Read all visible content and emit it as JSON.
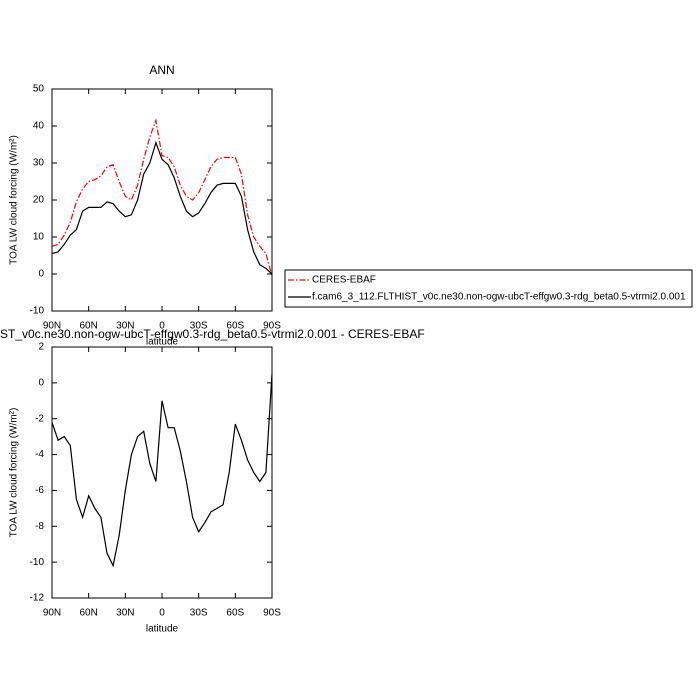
{
  "chart_data": [
    {
      "type": "line",
      "title": "ANN",
      "xlabel": "latitude",
      "ylabel": "TOA LW cloud forcing (W/m²)",
      "x": [
        90,
        85,
        80,
        75,
        70,
        65,
        60,
        55,
        50,
        45,
        40,
        35,
        30,
        25,
        20,
        15,
        10,
        5,
        0,
        -5,
        -10,
        -15,
        -20,
        -25,
        -30,
        -35,
        -40,
        -45,
        -50,
        -55,
        -60,
        -65,
        -70,
        -75,
        -80,
        -85,
        -90
      ],
      "series": [
        {
          "name": "CERES-EBAF",
          "color": "#ff0000",
          "dashed": true,
          "values": [
            7.5,
            8,
            10.5,
            14,
            19.5,
            23,
            25,
            25.5,
            26.5,
            29,
            29.5,
            25,
            21,
            20,
            24,
            31,
            37,
            41.5,
            32,
            31.5,
            29,
            24,
            21,
            20,
            22,
            25.5,
            29,
            31,
            31.5,
            31.5,
            31.5,
            27,
            16,
            10,
            7.5,
            5.5,
            -0.5
          ]
        },
        {
          "name": "f.cam6_3_112.FLTHIST_v0c.ne30.non-ogw-ubcT-effgw0.3-rdg_beta0.5-vtrmi2.0.001",
          "color": "#000000",
          "dashed": false,
          "values": [
            5.5,
            6,
            8,
            10.5,
            12,
            17,
            18,
            18,
            18,
            19.5,
            19,
            17,
            15.5,
            16,
            20,
            27,
            30,
            35.5,
            31,
            29.5,
            26,
            21,
            17,
            15.5,
            16.5,
            19,
            22,
            24,
            24.5,
            24.5,
            24.5,
            21,
            12,
            6,
            2.5,
            1.5,
            0
          ]
        }
      ],
      "xlim": [
        90,
        -90
      ],
      "xticks": [
        {
          "value": 90,
          "label": "90N"
        },
        {
          "value": 60,
          "label": "60N"
        },
        {
          "value": 30,
          "label": "30N"
        },
        0,
        {
          "value": -30,
          "label": "30S"
        },
        {
          "value": -60,
          "label": "60S"
        },
        {
          "value": -90,
          "label": "90S"
        }
      ],
      "ylim": [
        -10,
        50
      ],
      "yticks": [
        -10,
        0,
        10,
        20,
        30,
        40,
        50
      ]
    },
    {
      "type": "line",
      "title": "ST_v0c.ne30.non-ogw-ubcT-effgw0.3-rdg_beta0.5-vtrmi2.0.001 - CERES-EBAF",
      "xlabel": "latitude",
      "ylabel": "TOA LW cloud forcing (W/m²)",
      "x": [
        90,
        85,
        80,
        75,
        70,
        65,
        60,
        55,
        50,
        45,
        40,
        35,
        30,
        25,
        20,
        15,
        10,
        5,
        0,
        -5,
        -10,
        -15,
        -20,
        -25,
        -30,
        -35,
        -40,
        -45,
        -50,
        -55,
        -60,
        -65,
        -70,
        -75,
        -80,
        -85,
        -90
      ],
      "series": [
        {
          "color": "#000000",
          "dashed": false,
          "values": [
            -2.2,
            -3.2,
            -3,
            -3.5,
            -6.5,
            -7.5,
            -6.3,
            -7,
            -7.5,
            -9.5,
            -10.2,
            -8.5,
            -6,
            -4,
            -3,
            -2.7,
            -4.5,
            -5.5,
            -1,
            -2.5,
            -2.5,
            -3.8,
            -5.5,
            -7.5,
            -8.3,
            -7.8,
            -7.2,
            -7,
            -6.8,
            -5,
            -2.3,
            -3.2,
            -4.3,
            -5,
            -5.5,
            -5,
            0.5
          ]
        }
      ],
      "xlim": [
        90,
        -90
      ],
      "xticks": [
        {
          "value": 90,
          "label": "90N"
        },
        {
          "value": 60,
          "label": "60N"
        },
        {
          "value": 30,
          "label": "30N"
        },
        0,
        {
          "value": -30,
          "label": "30S"
        },
        {
          "value": -60,
          "label": "60S"
        },
        {
          "value": -90,
          "label": "90S"
        }
      ],
      "ylim": [
        -12,
        2
      ],
      "yticks": [
        -12,
        -10,
        -8,
        -6,
        -4,
        -2,
        0,
        2
      ]
    }
  ]
}
